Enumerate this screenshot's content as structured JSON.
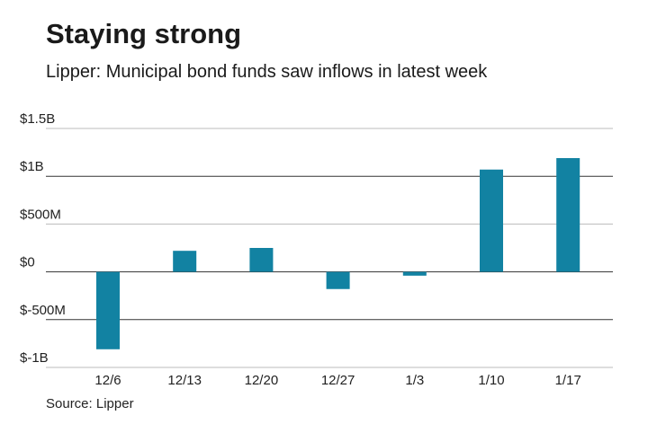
{
  "header": {
    "title": "Staying strong",
    "subtitle": "Lipper: Municipal bond funds saw inflows in latest week"
  },
  "footer": {
    "source": "Source: Lipper"
  },
  "colors": {
    "bar": "#1282a2",
    "grid_light": "#bbbbbb",
    "grid_dark": "#333333"
  },
  "chart_data": {
    "type": "bar",
    "title": "Staying strong",
    "subtitle": "Lipper: Municipal bond funds saw inflows in latest week",
    "xlabel": "",
    "ylabel": "",
    "categories": [
      "12/6",
      "12/13",
      "12/20",
      "12/27",
      "1/3",
      "1/10",
      "1/17"
    ],
    "values": [
      -0.81,
      0.22,
      0.25,
      -0.18,
      -0.04,
      1.07,
      1.19
    ],
    "units": "billions of dollars",
    "ylim": [
      -1,
      1.5
    ],
    "yticks": [
      1.5,
      1,
      0.5,
      0,
      -0.5,
      -1
    ],
    "ytick_labels": [
      "$1.5B",
      "$1B",
      "$500M",
      "$0",
      "$-500M",
      "$-1B"
    ],
    "grid": true,
    "legend": "none"
  }
}
